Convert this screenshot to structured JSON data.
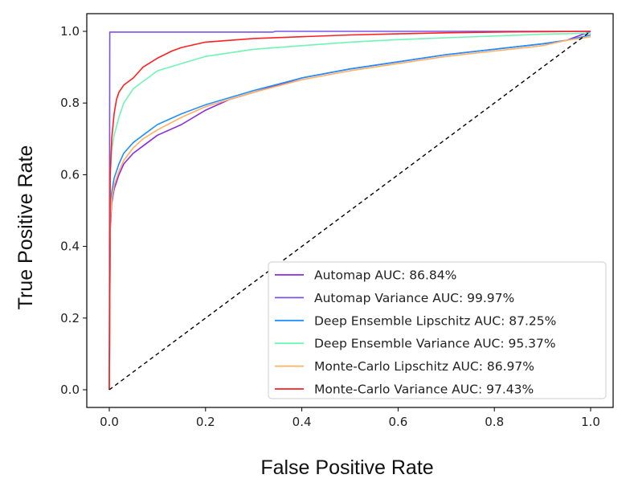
{
  "chart_data": {
    "type": "line",
    "title": "",
    "xlabel": "False Positive Rate",
    "ylabel": "True Positive Rate",
    "xlim": [
      0.0,
      1.0
    ],
    "ylim": [
      0.0,
      1.0
    ],
    "x_ticks": [
      "0.0",
      "0.2",
      "0.4",
      "0.6",
      "0.8",
      "1.0"
    ],
    "y_ticks": [
      "0.0",
      "0.2",
      "0.4",
      "0.6",
      "0.8",
      "1.0"
    ],
    "grid": false,
    "legend_position": "lower-right",
    "series": [
      {
        "name": "Automap AUC: 86.84%",
        "color": "#8a2be2",
        "points": [
          [
            0,
            0
          ],
          [
            0.002,
            0.45
          ],
          [
            0.005,
            0.52
          ],
          [
            0.01,
            0.56
          ],
          [
            0.02,
            0.6
          ],
          [
            0.03,
            0.63
          ],
          [
            0.05,
            0.66
          ],
          [
            0.07,
            0.68
          ],
          [
            0.1,
            0.71
          ],
          [
            0.15,
            0.74
          ],
          [
            0.2,
            0.78
          ],
          [
            0.25,
            0.81
          ],
          [
            0.3,
            0.83
          ],
          [
            0.4,
            0.87
          ],
          [
            0.5,
            0.895
          ],
          [
            0.6,
            0.915
          ],
          [
            0.7,
            0.935
          ],
          [
            0.8,
            0.95
          ],
          [
            0.9,
            0.965
          ],
          [
            0.95,
            0.975
          ],
          [
            1.0,
            1.0
          ]
        ]
      },
      {
        "name": "Automap Variance AUC: 99.97%",
        "color": "#7b52e6",
        "points": [
          [
            0,
            0
          ],
          [
            0.001,
            0.998
          ],
          [
            0.1,
            0.998
          ],
          [
            0.34,
            0.998
          ],
          [
            0.345,
            1.0
          ],
          [
            1.0,
            1.0
          ]
        ]
      },
      {
        "name": "Deep Ensemble Lipschitz AUC: 87.25%",
        "color": "#1e90ff",
        "points": [
          [
            0,
            0
          ],
          [
            0.002,
            0.5
          ],
          [
            0.005,
            0.55
          ],
          [
            0.01,
            0.59
          ],
          [
            0.02,
            0.63
          ],
          [
            0.03,
            0.66
          ],
          [
            0.05,
            0.69
          ],
          [
            0.07,
            0.71
          ],
          [
            0.1,
            0.74
          ],
          [
            0.15,
            0.77
          ],
          [
            0.2,
            0.795
          ],
          [
            0.25,
            0.815
          ],
          [
            0.3,
            0.835
          ],
          [
            0.4,
            0.87
          ],
          [
            0.5,
            0.895
          ],
          [
            0.6,
            0.915
          ],
          [
            0.7,
            0.935
          ],
          [
            0.8,
            0.95
          ],
          [
            0.9,
            0.965
          ],
          [
            0.95,
            0.975
          ],
          [
            1.0,
            0.99
          ]
        ]
      },
      {
        "name": "Deep Ensemble Variance AUC: 95.37%",
        "color": "#6ff5b5",
        "points": [
          [
            0,
            0
          ],
          [
            0.002,
            0.6
          ],
          [
            0.005,
            0.67
          ],
          [
            0.01,
            0.71
          ],
          [
            0.02,
            0.76
          ],
          [
            0.03,
            0.8
          ],
          [
            0.05,
            0.84
          ],
          [
            0.08,
            0.87
          ],
          [
            0.1,
            0.89
          ],
          [
            0.15,
            0.91
          ],
          [
            0.2,
            0.93
          ],
          [
            0.3,
            0.95
          ],
          [
            0.4,
            0.96
          ],
          [
            0.5,
            0.97
          ],
          [
            0.6,
            0.977
          ],
          [
            0.7,
            0.982
          ],
          [
            0.8,
            0.987
          ],
          [
            0.9,
            0.992
          ],
          [
            1.0,
            0.995
          ]
        ]
      },
      {
        "name": "Monte-Carlo Lipschitz AUC: 86.97%",
        "color": "#ffb060",
        "points": [
          [
            0,
            0
          ],
          [
            0.002,
            0.47
          ],
          [
            0.005,
            0.53
          ],
          [
            0.01,
            0.57
          ],
          [
            0.02,
            0.61
          ],
          [
            0.03,
            0.64
          ],
          [
            0.05,
            0.675
          ],
          [
            0.07,
            0.7
          ],
          [
            0.1,
            0.725
          ],
          [
            0.15,
            0.76
          ],
          [
            0.2,
            0.79
          ],
          [
            0.25,
            0.81
          ],
          [
            0.3,
            0.83
          ],
          [
            0.4,
            0.865
          ],
          [
            0.5,
            0.89
          ],
          [
            0.6,
            0.91
          ],
          [
            0.7,
            0.93
          ],
          [
            0.8,
            0.945
          ],
          [
            0.9,
            0.96
          ],
          [
            0.95,
            0.975
          ],
          [
            1.0,
            0.985
          ]
        ]
      },
      {
        "name": "Monte-Carlo Variance AUC: 97.43%",
        "color": "#ff2020",
        "points": [
          [
            0,
            0
          ],
          [
            0.002,
            0.6
          ],
          [
            0.005,
            0.7
          ],
          [
            0.01,
            0.77
          ],
          [
            0.015,
            0.81
          ],
          [
            0.02,
            0.83
          ],
          [
            0.03,
            0.85
          ],
          [
            0.05,
            0.87
          ],
          [
            0.07,
            0.9
          ],
          [
            0.1,
            0.925
          ],
          [
            0.13,
            0.945
          ],
          [
            0.15,
            0.955
          ],
          [
            0.2,
            0.97
          ],
          [
            0.3,
            0.98
          ],
          [
            0.4,
            0.985
          ],
          [
            0.5,
            0.99
          ],
          [
            0.6,
            0.993
          ],
          [
            0.7,
            0.996
          ],
          [
            0.8,
            0.998
          ],
          [
            0.9,
            0.999
          ],
          [
            1.0,
            1.0
          ]
        ]
      }
    ],
    "reference_line": {
      "points": [
        [
          0,
          0
        ],
        [
          1,
          1
        ]
      ],
      "style": "dashed",
      "color": "#000000"
    }
  }
}
